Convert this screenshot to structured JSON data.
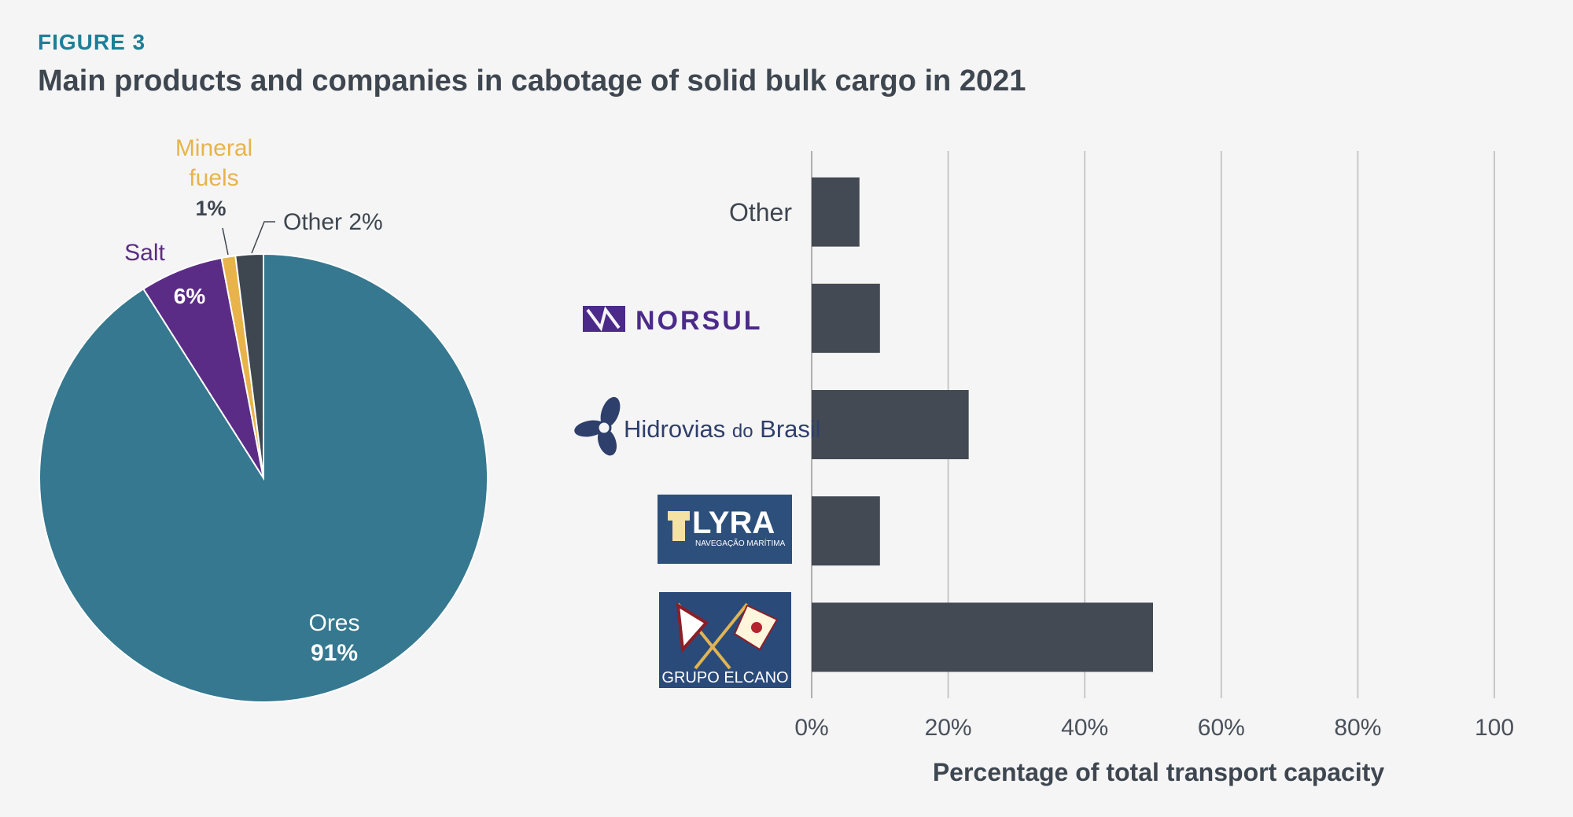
{
  "figure": {
    "label": "FIGURE 3",
    "title": "Main products and companies in cabotage of solid bulk cargo in 2021"
  },
  "colors": {
    "ores": "#35788f",
    "salt": "#5b2c86",
    "mineral_fuels": "#e8b34a",
    "other": "#3e4650",
    "bar": "#434a54",
    "grid": "#c8c8c8",
    "teal": "#1d7f97"
  },
  "chart_data": [
    {
      "type": "pie",
      "slices": [
        {
          "label": "Ores",
          "value": 91,
          "value_label": "91%"
        },
        {
          "label": "Salt",
          "value": 6,
          "value_label": "6%"
        },
        {
          "label": "Mineral fuels",
          "value": 1,
          "value_label": "1%"
        },
        {
          "label": "Other",
          "value": 2,
          "value_label": "2%"
        }
      ],
      "label_lines": {
        "mineral_line1": "Mineral",
        "mineral_line2": "fuels",
        "other_text": "Other 2%"
      }
    },
    {
      "type": "bar",
      "orientation": "horizontal",
      "categories": [
        "Other",
        "NORSUL",
        "Hidrovias do Brasil",
        "LYRA",
        "GRUPO ELCANO"
      ],
      "values": [
        7,
        10,
        23,
        10,
        50
      ],
      "xlim": [
        0,
        100
      ],
      "xticks": [
        "0%",
        "20%",
        "40%",
        "60%",
        "80%",
        "100"
      ],
      "xlabel": "Percentage of total transport capacity",
      "grid": true,
      "logo_text": {
        "norsul": "NORSUL",
        "hidrovias_main": "Hidrovias",
        "hidrovias_do": "do",
        "hidrovias_brasil": "Brasil",
        "lyra": "LYRA",
        "lyra_sub": "NAVEGAÇÃO MARÍTIMA",
        "elcano": "GRUPO ELCANO"
      }
    }
  ]
}
